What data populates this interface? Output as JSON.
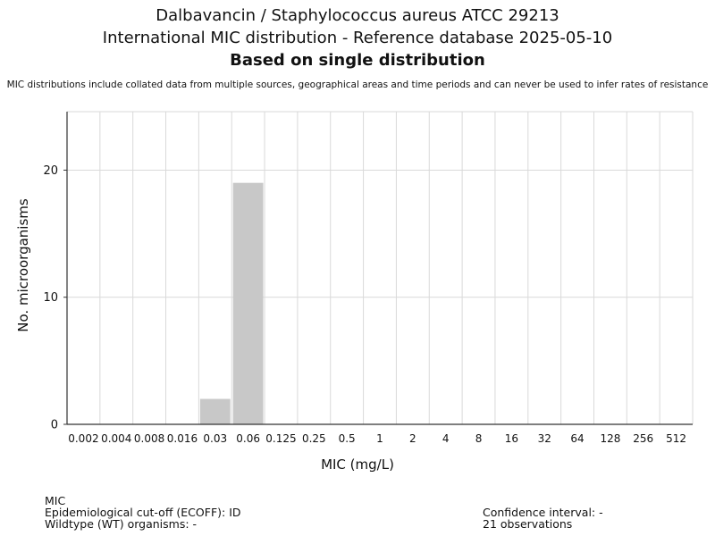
{
  "header": {
    "title_line1": "Dalbavancin / Staphylococcus aureus ATCC 29213",
    "title_line2": "International MIC distribution - Reference database 2025-05-10",
    "title_line3": "Based on single distribution",
    "disclaimer": "MIC distributions include collated data from multiple sources, geographical areas and time periods and can never be used to infer rates of resistance"
  },
  "chart_data": {
    "type": "bar",
    "xlabel": "MIC (mg/L)",
    "ylabel": "No. microorganisms",
    "categories": [
      "0.002",
      "0.004",
      "0.008",
      "0.016",
      "0.03",
      "0.06",
      "0.125",
      "0.25",
      "0.5",
      "1",
      "2",
      "4",
      "8",
      "16",
      "32",
      "64",
      "128",
      "256",
      "512"
    ],
    "values": [
      0,
      0,
      0,
      0,
      2,
      19,
      0,
      0,
      0,
      0,
      0,
      0,
      0,
      0,
      0,
      0,
      0,
      0,
      0
    ],
    "ylim": [
      0,
      24.6
    ],
    "yticks": [
      0,
      10,
      20
    ],
    "grid": true,
    "bar_color": "#c8c8c8"
  },
  "footer": {
    "mic_label": "MIC",
    "ecoff": "Epidemiological cut-off (ECOFF): ID",
    "wildtype": "Wildtype (WT) organisms:  -",
    "confidence": "Confidence interval: -",
    "observations": "21 observations"
  }
}
